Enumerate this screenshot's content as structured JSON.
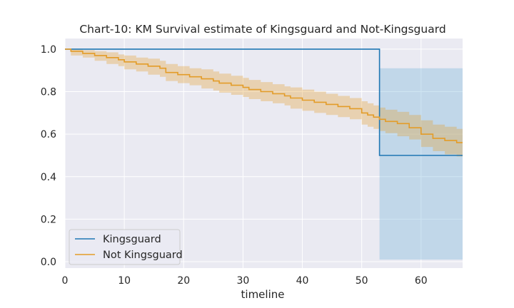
{
  "chart_data": {
    "type": "line",
    "subtype": "kaplan-meier-step",
    "title": "Chart-10: KM Survival estimate of Kingsguard and Not-Kingsguard",
    "xlabel": "timeline",
    "ylabel": "",
    "xlim": [
      0,
      67
    ],
    "ylim": [
      -0.03,
      1.05
    ],
    "xticks": [
      0,
      10,
      20,
      30,
      40,
      50,
      60
    ],
    "yticks": [
      0.0,
      0.2,
      0.4,
      0.6,
      0.8,
      1.0
    ],
    "grid": true,
    "background": "#eaeaf2",
    "legend_position": "lower-left",
    "series": [
      {
        "name": "Kingsguard",
        "color": "#1f77b4",
        "ci_color": "#6baed6",
        "x": [
          0,
          53,
          67
        ],
        "y": [
          1.0,
          0.5,
          0.5
        ],
        "ci_upper": [
          1.0,
          0.91,
          0.91
        ],
        "ci_lower": [
          1.0,
          0.01,
          0.01
        ]
      },
      {
        "name": "Not Kingsguard",
        "color": "#e39c28",
        "ci_color": "#e39c28",
        "x": [
          0,
          1,
          3,
          5,
          7,
          9,
          10,
          12,
          14,
          16,
          17,
          19,
          21,
          23,
          25,
          26,
          28,
          30,
          31,
          33,
          35,
          37,
          38,
          40,
          42,
          44,
          46,
          48,
          50,
          51,
          52,
          53,
          54,
          56,
          58,
          60,
          62,
          64,
          66,
          67
        ],
        "y": [
          1.0,
          0.99,
          0.98,
          0.97,
          0.96,
          0.95,
          0.94,
          0.93,
          0.92,
          0.91,
          0.89,
          0.88,
          0.87,
          0.86,
          0.85,
          0.84,
          0.83,
          0.82,
          0.81,
          0.8,
          0.79,
          0.78,
          0.77,
          0.76,
          0.75,
          0.74,
          0.73,
          0.72,
          0.7,
          0.69,
          0.68,
          0.67,
          0.66,
          0.65,
          0.63,
          0.6,
          0.58,
          0.57,
          0.56,
          0.56
        ],
        "ci_upper": [
          1.0,
          1.0,
          0.995,
          0.99,
          0.985,
          0.975,
          0.97,
          0.96,
          0.955,
          0.945,
          0.93,
          0.92,
          0.91,
          0.905,
          0.895,
          0.885,
          0.875,
          0.865,
          0.855,
          0.845,
          0.835,
          0.825,
          0.82,
          0.81,
          0.8,
          0.79,
          0.78,
          0.77,
          0.755,
          0.745,
          0.735,
          0.725,
          0.715,
          0.705,
          0.69,
          0.665,
          0.645,
          0.635,
          0.625,
          0.625
        ],
        "ci_lower": [
          1.0,
          0.97,
          0.96,
          0.945,
          0.93,
          0.92,
          0.905,
          0.895,
          0.88,
          0.87,
          0.85,
          0.84,
          0.83,
          0.815,
          0.805,
          0.795,
          0.785,
          0.775,
          0.765,
          0.755,
          0.745,
          0.735,
          0.72,
          0.71,
          0.7,
          0.69,
          0.68,
          0.67,
          0.645,
          0.635,
          0.625,
          0.615,
          0.605,
          0.59,
          0.575,
          0.54,
          0.52,
          0.505,
          0.495,
          0.495
        ]
      }
    ]
  }
}
